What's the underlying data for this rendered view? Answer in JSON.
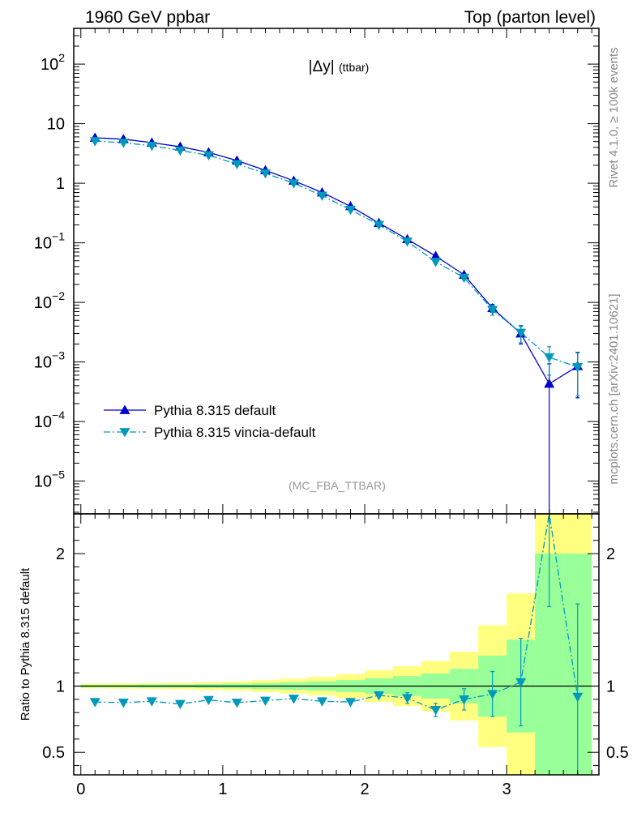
{
  "header": {
    "left": "1960 GeV ppbar",
    "right": "Top (parton level)"
  },
  "side_labels": {
    "top": "Rivet 4.1.0, ≥ 100k events",
    "bottom": "mcplots.cern.ch [arXiv:2401.10621]"
  },
  "chart_data": {
    "type": "line",
    "title": "|Δy|",
    "title_suffix": "(ttbar)",
    "watermark": "(MC_FBA_TTBAR)",
    "xlabel": "",
    "ylabel": "",
    "ratio_ylabel": "Ratio to Pythia 8.315 default",
    "xlim": [
      -0.05,
      3.65
    ],
    "ylim_log": [
      -5.55,
      2.6
    ],
    "ratio_ylim": [
      0.33,
      2.3
    ],
    "x_ticks": [
      {
        "v": 0,
        "label": "0"
      },
      {
        "v": 1,
        "label": "1"
      },
      {
        "v": 2,
        "label": "2"
      },
      {
        "v": 3,
        "label": "3"
      }
    ],
    "y_ticks": [
      {
        "v": 100,
        "base": "10",
        "exp": "2"
      },
      {
        "v": 10,
        "base": "10",
        "exp": ""
      },
      {
        "v": 1,
        "base": "1",
        "exp": ""
      },
      {
        "v": 0.1,
        "base": "10",
        "exp": "−1"
      },
      {
        "v": 0.01,
        "base": "10",
        "exp": "−2"
      },
      {
        "v": 0.001,
        "base": "10",
        "exp": "−3"
      },
      {
        "v": 0.0001,
        "base": "10",
        "exp": "−4"
      },
      {
        "v": 1e-05,
        "base": "10",
        "exp": "−5"
      }
    ],
    "ratio_ticks": [
      {
        "v": 0.5,
        "label": "0.5"
      },
      {
        "v": 1,
        "label": "1"
      },
      {
        "v": 2,
        "label": "2"
      }
    ],
    "bin_edges": [
      0,
      0.2,
      0.4,
      0.6,
      0.8,
      1.0,
      1.2,
      1.4,
      1.6,
      1.8,
      2.0,
      2.2,
      2.4,
      2.6,
      2.8,
      3.0,
      3.2,
      3.4,
      3.6
    ],
    "x": [
      0.1,
      0.3,
      0.5,
      0.7,
      0.9,
      1.1,
      1.3,
      1.5,
      1.7,
      1.9,
      2.1,
      2.3,
      2.5,
      2.7,
      2.9,
      3.1,
      3.3,
      3.5
    ],
    "series": [
      {
        "name": "Pythia 8.315 default",
        "color": "#0000cc",
        "marker": "triangle-up",
        "line": "solid",
        "values": [
          5.8,
          5.5,
          4.8,
          4.1,
          3.3,
          2.4,
          1.65,
          1.1,
          0.7,
          0.41,
          0.215,
          0.115,
          0.06,
          0.029,
          0.008,
          0.003,
          0.00043,
          0.00085
        ],
        "err_up": [
          0.06,
          0.06,
          0.05,
          0.05,
          0.04,
          0.03,
          0.025,
          0.02,
          0.015,
          0.01,
          0.007,
          0.005,
          0.003,
          0.002,
          0.0012,
          0.001,
          0.0005,
          0.0006
        ],
        "err_dn": [
          0.06,
          0.06,
          0.05,
          0.05,
          0.04,
          0.03,
          0.025,
          0.02,
          0.015,
          0.01,
          0.007,
          0.005,
          0.003,
          0.002,
          0.0012,
          0.001,
          0.00043,
          0.0006
        ]
      },
      {
        "name": "Pythia 8.315 vincia-default",
        "color": "#0099bb",
        "marker": "triangle-down",
        "line": "dashdot",
        "values": [
          5.1,
          4.8,
          4.25,
          3.55,
          2.95,
          2.1,
          1.47,
          1.0,
          0.62,
          0.36,
          0.2,
          0.105,
          0.048,
          0.026,
          0.0075,
          0.0031,
          0.0012,
          0.00082
        ],
        "err_up": [
          0.06,
          0.06,
          0.05,
          0.05,
          0.04,
          0.03,
          0.025,
          0.02,
          0.015,
          0.01,
          0.007,
          0.005,
          0.003,
          0.002,
          0.0014,
          0.001,
          0.0006,
          0.0006
        ],
        "err_dn": [
          0.06,
          0.06,
          0.05,
          0.05,
          0.04,
          0.03,
          0.025,
          0.02,
          0.015,
          0.01,
          0.007,
          0.005,
          0.003,
          0.002,
          0.0014,
          0.001,
          0.0006,
          0.00055
        ]
      }
    ],
    "ratio": {
      "reference": "Pythia 8.315 default",
      "reference_line": 1,
      "values": [
        0.88,
        0.875,
        0.885,
        0.865,
        0.895,
        0.875,
        0.89,
        0.905,
        0.885,
        0.88,
        0.93,
        0.91,
        0.82,
        0.9,
        0.94,
        1.03,
        2.3,
        0.92
      ],
      "err": [
        0.012,
        0.012,
        0.012,
        0.012,
        0.015,
        0.015,
        0.015,
        0.018,
        0.02,
        0.025,
        0.03,
        0.04,
        0.05,
        0.08,
        0.17,
        0.33,
        0.7,
        0.7
      ],
      "band_inner": [
        0.01,
        0.01,
        0.012,
        0.012,
        0.015,
        0.018,
        0.022,
        0.028,
        0.035,
        0.045,
        0.06,
        0.075,
        0.095,
        0.13,
        0.23,
        0.35,
        1.0,
        1.0
      ],
      "band_outer": [
        0.018,
        0.02,
        0.022,
        0.025,
        0.03,
        0.035,
        0.045,
        0.055,
        0.07,
        0.09,
        0.12,
        0.15,
        0.19,
        0.26,
        0.46,
        0.7,
        2.0,
        2.0
      ]
    }
  }
}
